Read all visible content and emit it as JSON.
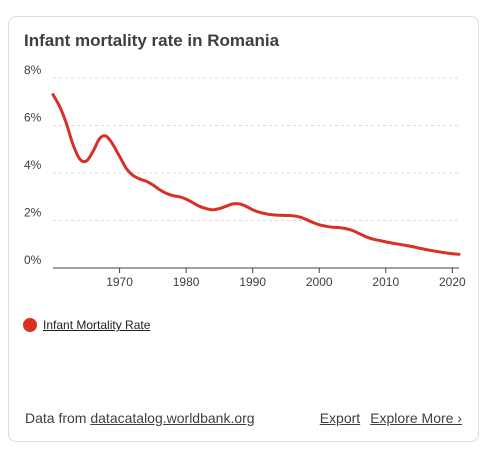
{
  "card": {
    "title": "Infant mortality rate in Romania"
  },
  "legend": {
    "label": "Infant Mortality Rate",
    "color": "#d93025"
  },
  "footer": {
    "source_prefix": "Data from",
    "source_link": "datacatalog.worldbank.org",
    "export_label": "Export",
    "explore_label": "Explore More ›"
  },
  "chart_data": {
    "type": "line",
    "title": "Infant mortality rate in Romania",
    "xlabel": "",
    "ylabel": "",
    "xlim": [
      1960,
      2021
    ],
    "ylim": [
      0,
      8
    ],
    "x_ticks": [
      1970,
      1980,
      1990,
      2000,
      2010,
      2020
    ],
    "y_ticks": [
      "0%",
      "2%",
      "4%",
      "6%",
      "8%"
    ],
    "grid": true,
    "legend_position": "bottom-left",
    "series": [
      {
        "name": "Infant Mortality Rate",
        "color": "#d93025",
        "x": [
          1960,
          1961,
          1962,
          1963,
          1964,
          1965,
          1966,
          1967,
          1968,
          1969,
          1970,
          1971,
          1972,
          1973,
          1974,
          1975,
          1976,
          1977,
          1978,
          1979,
          1980,
          1981,
          1982,
          1983,
          1984,
          1985,
          1986,
          1987,
          1988,
          1989,
          1990,
          1991,
          1992,
          1993,
          1994,
          1995,
          1996,
          1997,
          1998,
          1999,
          2000,
          2001,
          2002,
          2003,
          2004,
          2005,
          2006,
          2007,
          2008,
          2009,
          2010,
          2011,
          2012,
          2013,
          2014,
          2015,
          2016,
          2017,
          2018,
          2019,
          2020,
          2021
        ],
        "y": [
          7.3,
          6.8,
          6.1,
          5.2,
          4.6,
          4.5,
          4.9,
          5.45,
          5.55,
          5.2,
          4.7,
          4.2,
          3.9,
          3.75,
          3.65,
          3.5,
          3.3,
          3.15,
          3.05,
          3.0,
          2.9,
          2.75,
          2.6,
          2.5,
          2.45,
          2.5,
          2.6,
          2.7,
          2.7,
          2.6,
          2.45,
          2.35,
          2.28,
          2.24,
          2.22,
          2.21,
          2.2,
          2.15,
          2.05,
          1.92,
          1.82,
          1.76,
          1.72,
          1.7,
          1.66,
          1.58,
          1.45,
          1.32,
          1.22,
          1.16,
          1.1,
          1.05,
          1.0,
          0.95,
          0.9,
          0.84,
          0.78,
          0.73,
          0.68,
          0.64,
          0.6,
          0.58
        ]
      }
    ]
  }
}
